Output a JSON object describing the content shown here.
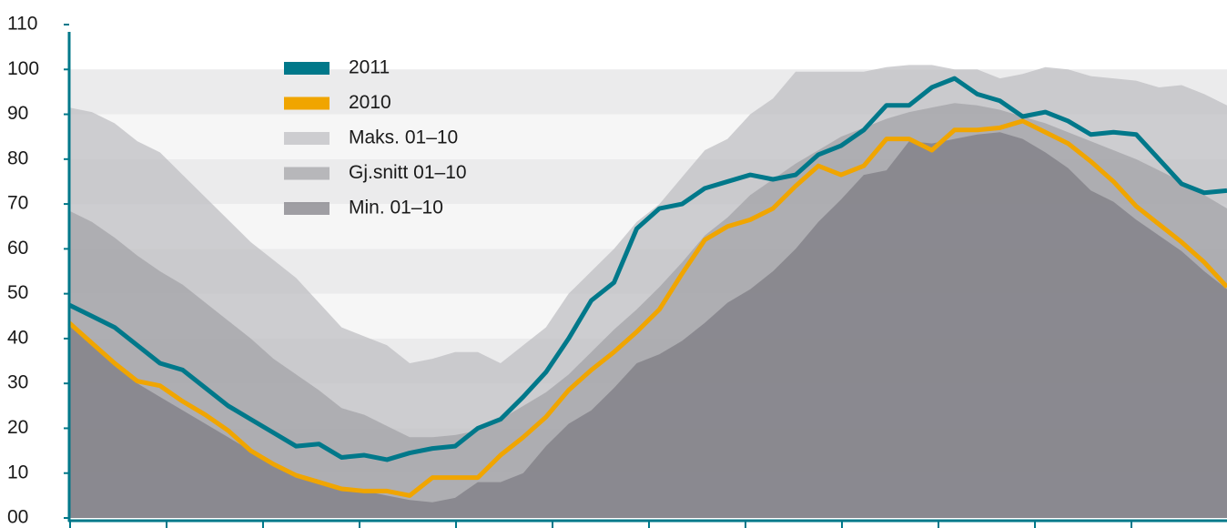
{
  "chart_data": {
    "type": "area",
    "x": [
      1,
      2,
      3,
      4,
      5,
      6,
      7,
      8,
      9,
      10,
      11,
      12,
      13,
      14,
      15,
      16,
      17,
      18,
      19,
      20,
      21,
      22,
      23,
      24,
      25,
      26,
      27,
      28,
      29,
      30,
      31,
      32,
      33,
      34,
      35,
      36,
      37,
      38,
      39,
      40,
      41,
      42,
      43,
      44,
      45,
      46,
      47,
      48,
      49,
      50,
      51,
      52
    ],
    "xlim": [
      1,
      52
    ],
    "ylim": [
      0,
      110
    ],
    "yticks": [
      {
        "value": 0,
        "label": "00"
      },
      10,
      20,
      30,
      40,
      50,
      60,
      70,
      80,
      90,
      100,
      110
    ],
    "series": [
      {
        "name": "2011",
        "color": "#00788a",
        "style": "line",
        "values": [
          47.5,
          45,
          42.5,
          38.5,
          34.5,
          33,
          29,
          25,
          22,
          19,
          16,
          16.5,
          13.5,
          14,
          13,
          14.5,
          15.5,
          16,
          20,
          22,
          27,
          32.5,
          40,
          48.5,
          52.5,
          64.5,
          69,
          70,
          73.5,
          75,
          76.5,
          75.5,
          76.5,
          81,
          83,
          86.5,
          92,
          92,
          96,
          98,
          94.5,
          93,
          89.5,
          90.5,
          88.5,
          85.5,
          86,
          85.5,
          80,
          74.5,
          72.5,
          73
        ]
      },
      {
        "name": "2010",
        "color": "#f0a500",
        "style": "line",
        "values": [
          43.5,
          39,
          34.5,
          30.5,
          29.5,
          26,
          23,
          19.5,
          15,
          12,
          9.5,
          8,
          6.5,
          6,
          6,
          5,
          9,
          9,
          9,
          14,
          18,
          22.5,
          28.5,
          33,
          37,
          41.5,
          46.5,
          54.5,
          62,
          65,
          66.5,
          69,
          74,
          78.5,
          76.5,
          78.5,
          84.5,
          84.5,
          82,
          86.5,
          86.5,
          87,
          88.5,
          86,
          83.5,
          79.5,
          75,
          69.5,
          65.5,
          61.5,
          57,
          51.5
        ]
      },
      {
        "name": "Maks. 01–10",
        "color": "#bdbdc0",
        "style": "area",
        "values": [
          91.5,
          90.5,
          88,
          84,
          81.5,
          76.5,
          71.5,
          66.5,
          61.5,
          57.5,
          53.5,
          48,
          42.5,
          40.5,
          38.5,
          34.5,
          35.5,
          37,
          37,
          34.5,
          38.5,
          42.5,
          50,
          55,
          60,
          66,
          70,
          76,
          82,
          84.5,
          90,
          93.5,
          99.5,
          99.5,
          99.5,
          99.5,
          100.5,
          101,
          101,
          100,
          100,
          98,
          99,
          100.5,
          100,
          98.5,
          98,
          97.5,
          96,
          96.5,
          94.5,
          92
        ]
      },
      {
        "name": "Gj.snitt 01–10",
        "color": "#a2a2a6",
        "style": "area",
        "values": [
          68.5,
          66,
          62.5,
          58.5,
          55,
          52,
          48,
          44,
          40,
          35.5,
          32,
          28.5,
          24.5,
          23,
          20.5,
          18,
          18,
          18.5,
          19.5,
          22,
          25,
          28,
          32,
          37,
          42,
          46.5,
          51.5,
          57,
          63,
          67,
          72,
          75.5,
          79,
          82,
          85,
          87,
          89,
          90.5,
          91.5,
          92.5,
          92,
          91,
          89.5,
          88,
          86,
          84,
          82,
          80,
          77.5,
          75,
          72,
          69
        ]
      },
      {
        "name": "Min. 01–10",
        "color": "#7d7c82",
        "style": "area",
        "values": [
          43,
          38.5,
          34,
          30,
          27,
          24,
          21,
          18,
          15,
          12,
          9.5,
          8,
          6.5,
          6,
          5,
          4,
          3.5,
          4.5,
          8,
          8,
          10,
          16,
          21,
          24,
          29,
          34.5,
          36.5,
          39.5,
          43.5,
          48,
          51,
          55,
          60,
          66,
          71,
          76.5,
          77.5,
          84,
          83.5,
          84.5,
          85.5,
          86,
          84.5,
          81.5,
          78,
          73,
          70.5,
          66.5,
          63,
          59.5,
          55,
          51
        ]
      }
    ]
  }
}
